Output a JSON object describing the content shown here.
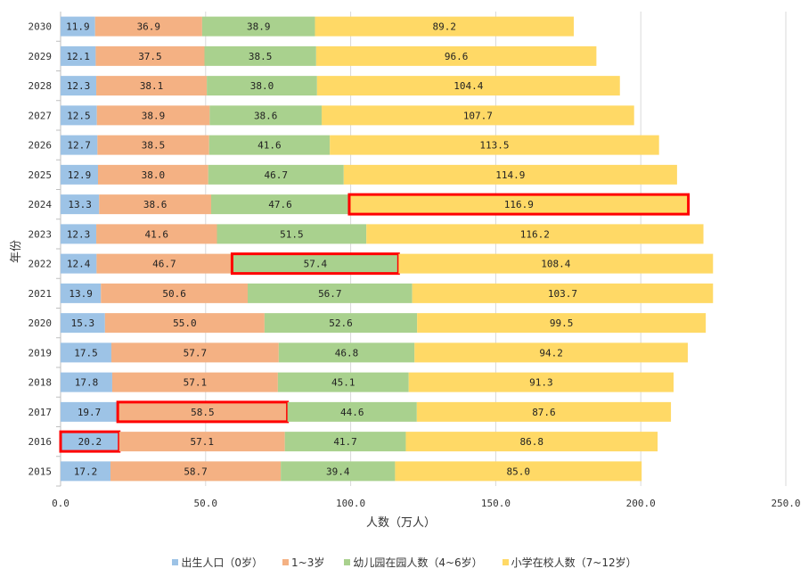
{
  "chart_data": {
    "type": "bar",
    "orientation": "horizontal",
    "stacked": true,
    "title": "",
    "xlabel": "人数（万人）",
    "ylabel": "年份",
    "xlim": [
      0,
      250
    ],
    "xticks": [
      "0.0",
      "50.0",
      "100.0",
      "150.0",
      "200.0",
      "250.0"
    ],
    "grid": true,
    "legend_position": "bottom",
    "categories": [
      "2015",
      "2016",
      "2017",
      "2018",
      "2019",
      "2020",
      "2021",
      "2022",
      "2023",
      "2024",
      "2025",
      "2026",
      "2027",
      "2028",
      "2029",
      "2030"
    ],
    "series": [
      {
        "name": "出生人口（0岁）",
        "color": "#9dc3e6",
        "values": [
          17.2,
          20.2,
          19.7,
          17.8,
          17.5,
          15.3,
          13.9,
          12.4,
          12.3,
          13.3,
          12.9,
          12.7,
          12.5,
          12.3,
          12.1,
          11.9
        ]
      },
      {
        "name": "1~3岁",
        "color": "#f4b183",
        "values": [
          58.7,
          57.1,
          58.5,
          57.1,
          57.7,
          55.0,
          50.6,
          46.7,
          41.6,
          38.6,
          38.0,
          38.5,
          38.9,
          38.1,
          37.5,
          36.9
        ]
      },
      {
        "name": "幼儿园在园人数（4~6岁）",
        "color": "#a9d18e",
        "values": [
          39.4,
          41.7,
          44.6,
          45.1,
          46.8,
          52.6,
          56.7,
          57.4,
          51.5,
          47.6,
          46.7,
          41.6,
          38.6,
          38.0,
          38.5,
          38.9
        ]
      },
      {
        "name": "小学在校人数（7~12岁）",
        "color": "#ffd966",
        "values": [
          85.0,
          86.8,
          87.6,
          91.3,
          94.2,
          99.5,
          103.7,
          108.4,
          116.2,
          116.9,
          114.9,
          113.5,
          107.7,
          104.4,
          96.6,
          89.2
        ]
      }
    ],
    "highlights": [
      {
        "category": "2016",
        "series_index": 0
      },
      {
        "category": "2017",
        "series_index": 1
      },
      {
        "category": "2022",
        "series_index": 2
      },
      {
        "category": "2024",
        "series_index": 3
      }
    ],
    "highlight_color": "#ff0000"
  }
}
